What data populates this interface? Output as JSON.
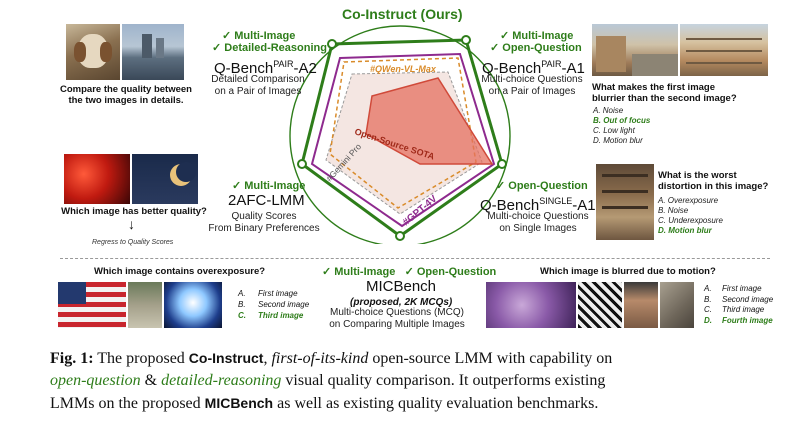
{
  "radar": {
    "title": "Co-Instruct (Ours)",
    "series_labels": {
      "qwen": "#QWen-VL-Max",
      "sota": "Open-Source SOTA",
      "gemini": "#Gemini Pro",
      "gpt": "#GPT-4V"
    },
    "colors": {
      "co_instruct": "#2e7d1a",
      "gpt": "#8e2a8e",
      "qwen": "#d98b2a",
      "sota": "#d04a3a",
      "gemini": "#888888"
    }
  },
  "top_left": {
    "tag1": "✓ Multi-Image",
    "tag2": "✓ Detailed-Reasoning",
    "task": "Q-Bench",
    "task_sup": "PAIR",
    "task_suffix": "-A2",
    "desc1": "Detailed Comparison",
    "desc2": "on a Pair of Images",
    "question1": "Compare the quality between",
    "question2": "the two images in details."
  },
  "top_right": {
    "tag1": "✓ Multi-Image",
    "tag2": "✓ Open-Question",
    "task": "Q-Bench",
    "task_sup": "PAIR",
    "task_suffix": "-A1",
    "desc1": "Multi-choice Questions",
    "desc2": "on a Pair of Images",
    "question1": "What makes the first image",
    "question2": "blurrier than the second image?",
    "options": [
      "A. Noise",
      "B. Out of focus",
      "C. Low light",
      "D. Motion blur"
    ]
  },
  "mid_left": {
    "tag1": "✓ Multi-Image",
    "task": "2AFC-LMM",
    "desc1": "Quality Scores",
    "desc2": "From Binary Preferences",
    "question": "Which image has better quality?",
    "arrow": "↓",
    "note": "Regress to Quality Scores"
  },
  "mid_right": {
    "tag1": "✓ Open-Question",
    "task": "Q-Bench",
    "task_sup": "SINGLE",
    "task_suffix": "-A1",
    "desc1": "Multi-choice Questions",
    "desc2": "on Single Images",
    "question1": "What is the worst",
    "question2": "distortion in this image?",
    "options": [
      "A. Overexposure",
      "B. Noise",
      "C. Underexposure",
      "D. Motion blur"
    ]
  },
  "bottom_center": {
    "tag1": "✓ Multi-Image",
    "tag2": "✓ Open-Question",
    "task": "MICBench",
    "sub": "(proposed, 2K MCQs)",
    "desc1": "Multi-choice Questions (MCQ)",
    "desc2": "on Comparing Multiple Images"
  },
  "bottom_left": {
    "question": "Which image contains overexposure?",
    "options": [
      {
        "letter": "A.",
        "text": "First image"
      },
      {
        "letter": "B.",
        "text": "Second image"
      },
      {
        "letter": "C.",
        "text": "Third image"
      }
    ]
  },
  "bottom_right": {
    "question": "Which image is blurred due to motion?",
    "options": [
      {
        "letter": "A.",
        "text": "First image"
      },
      {
        "letter": "B.",
        "text": "Second image"
      },
      {
        "letter": "C.",
        "text": "Third image"
      },
      {
        "letter": "D.",
        "text": "Fourth image"
      }
    ]
  },
  "caption": {
    "fig": "Fig. 1:",
    "t1": "The proposed",
    "name": "Co-Instruct",
    "t2": ",",
    "first": "first-of-its-kind",
    "t3": "open-source LMM with capability on",
    "oq": "open-question",
    "amp": "&",
    "dr": "detailed-reasoning",
    "t4": "visual quality comparison. It outperforms existing",
    "t5": "LMMs on the proposed",
    "bench": "MICBench",
    "t6": "as well as existing quality evaluation benchmarks."
  }
}
